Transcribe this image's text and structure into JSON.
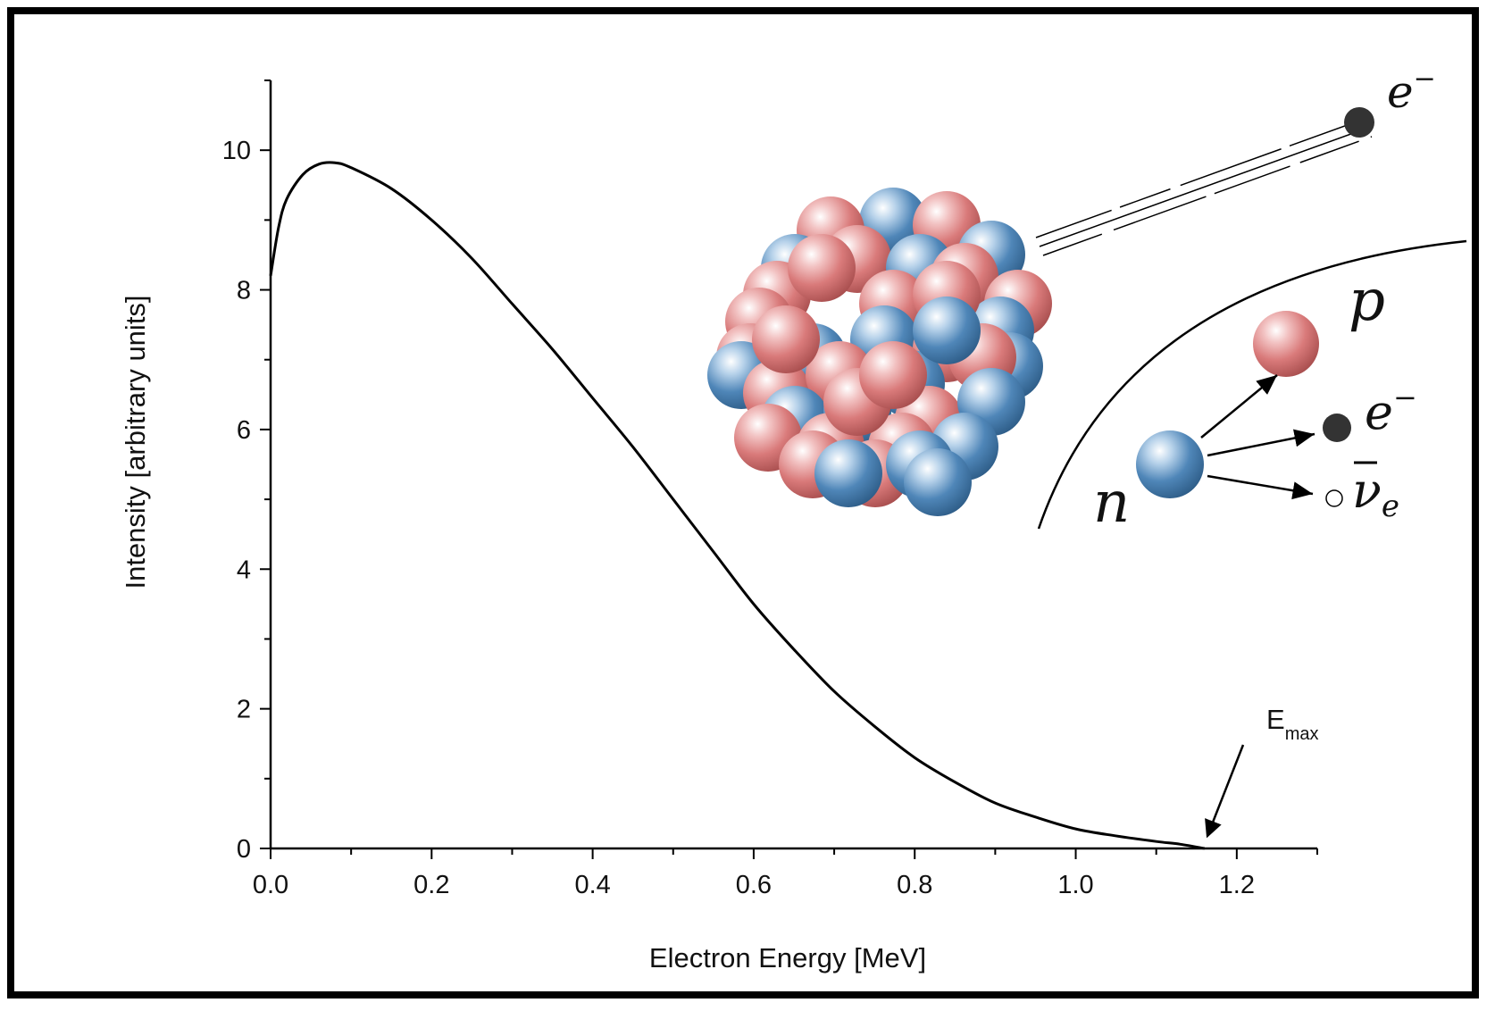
{
  "chart_data": {
    "type": "line",
    "title": "",
    "xlabel": "Electron Energy [MeV]",
    "ylabel": "Intensity [arbitrary units]",
    "xlim": [
      0,
      1.3
    ],
    "ylim": [
      0,
      11
    ],
    "x_ticks": [
      0.0,
      0.2,
      0.4,
      0.6,
      0.8,
      1.0,
      1.2
    ],
    "x_tick_labels": [
      "0.0",
      "0.2",
      "0.4",
      "0.6",
      "0.8",
      "1.0",
      "1.2"
    ],
    "y_ticks": [
      0,
      2,
      4,
      6,
      8,
      10
    ],
    "y_tick_labels": [
      "0",
      "2",
      "4",
      "6",
      "8",
      "10"
    ],
    "grid": false,
    "series": [
      {
        "x": [
          0.0,
          0.01,
          0.02,
          0.04,
          0.06,
          0.08,
          0.1,
          0.15,
          0.2,
          0.25,
          0.3,
          0.35,
          0.4,
          0.45,
          0.5,
          0.55,
          0.6,
          0.65,
          0.7,
          0.75,
          0.8,
          0.85,
          0.9,
          0.95,
          1.0,
          1.05,
          1.1,
          1.13,
          1.16
        ],
        "y": [
          8.2,
          8.9,
          9.3,
          9.65,
          9.8,
          9.82,
          9.75,
          9.45,
          9.0,
          8.45,
          7.8,
          7.15,
          6.45,
          5.75,
          5.0,
          4.25,
          3.5,
          2.85,
          2.25,
          1.75,
          1.3,
          0.95,
          0.65,
          0.45,
          0.28,
          0.18,
          0.1,
          0.06,
          0.0
        ]
      }
    ],
    "annotations": [
      {
        "text": "E",
        "subscript": "max",
        "points_to_x": 1.16,
        "points_to_y": 0.0
      }
    ],
    "colors": {
      "line": "#000000",
      "proton": "#d97a7a",
      "neutron": "#4f86b8",
      "electron": "#333333"
    }
  },
  "inset": {
    "emitted_electron_label": "e",
    "emitted_electron_sup": "−",
    "proton_label": "p",
    "neutron_label": "n",
    "decay_electron_label": "e",
    "decay_electron_sup": "−",
    "antineutrino_label": "ν",
    "antineutrino_sub": "e"
  }
}
